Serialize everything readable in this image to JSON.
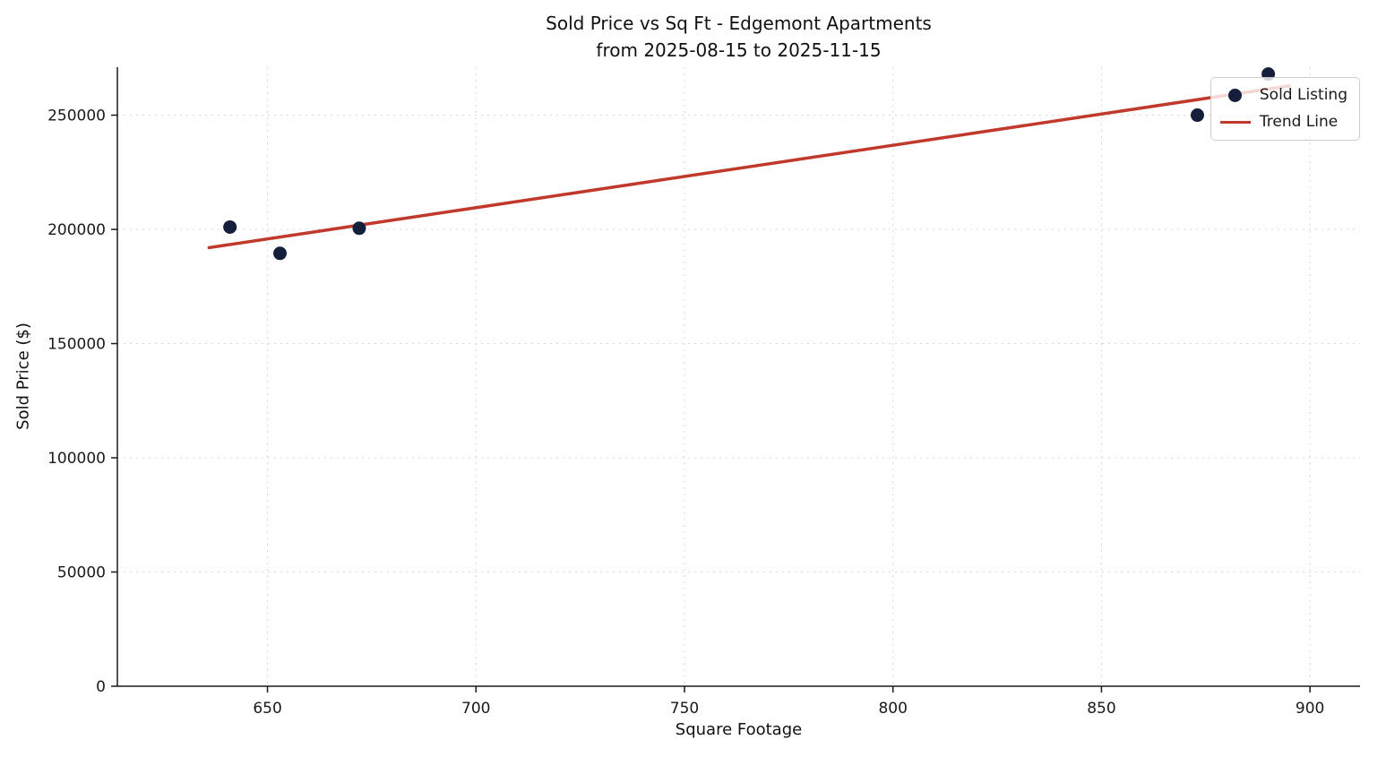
{
  "chart_data": {
    "type": "scatter",
    "title": "Sold Price vs Sq Ft - Edgemont Apartments",
    "subtitle": "from 2025-08-15 to 2025-11-15",
    "xlabel": "Square Footage",
    "ylabel": "Sold Price ($)",
    "xlim": [
      614,
      912
    ],
    "ylim": [
      0,
      271000
    ],
    "xticks": [
      650,
      700,
      750,
      800,
      850,
      900
    ],
    "yticks": [
      0,
      50000,
      100000,
      150000,
      200000,
      250000
    ],
    "grid": true,
    "grid_style": "dashed",
    "legend": {
      "position": "upper right"
    },
    "series": [
      {
        "name": "Sold Listing",
        "type": "scatter",
        "color": "#131f3b",
        "points": [
          {
            "x": 641,
            "y": 201000
          },
          {
            "x": 653,
            "y": 189500
          },
          {
            "x": 672,
            "y": 200500
          },
          {
            "x": 873,
            "y": 250000
          },
          {
            "x": 890,
            "y": 268000
          }
        ]
      },
      {
        "name": "Trend Line",
        "type": "line",
        "color": "#c0392b",
        "points": [
          {
            "x": 636,
            "y": 192000
          },
          {
            "x": 895,
            "y": 262800
          }
        ]
      }
    ],
    "colors": {
      "point": "#131f3b",
      "trend": "#c0392b",
      "grid": "#d9d9d9",
      "axis": "#1a1a1a",
      "background": "#ffffff"
    }
  }
}
